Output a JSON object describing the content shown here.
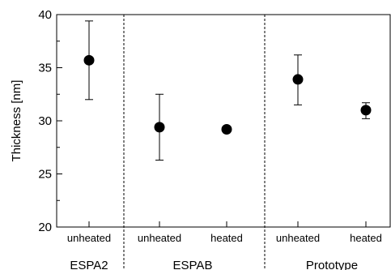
{
  "chart_data": {
    "type": "scatter",
    "title": "",
    "xlabel": "",
    "ylabel": "Thickness [nm]",
    "ylim": [
      20,
      40
    ],
    "yticks": [
      20,
      25,
      30,
      35,
      40
    ],
    "grid": false,
    "legend": "none",
    "groups": [
      "ESPA2",
      "ESPAB",
      "Prototype"
    ],
    "categories": [
      "unheated",
      "unheated",
      "heated",
      "unheated",
      "heated"
    ],
    "category_group": [
      0,
      1,
      1,
      2,
      2
    ],
    "values": [
      35.7,
      29.4,
      29.2,
      33.9,
      31.0
    ],
    "error_low": [
      32.0,
      26.3,
      null,
      31.5,
      30.2
    ],
    "error_high": [
      39.4,
      32.5,
      null,
      36.2,
      31.7
    ],
    "marker_color": "#000000"
  }
}
